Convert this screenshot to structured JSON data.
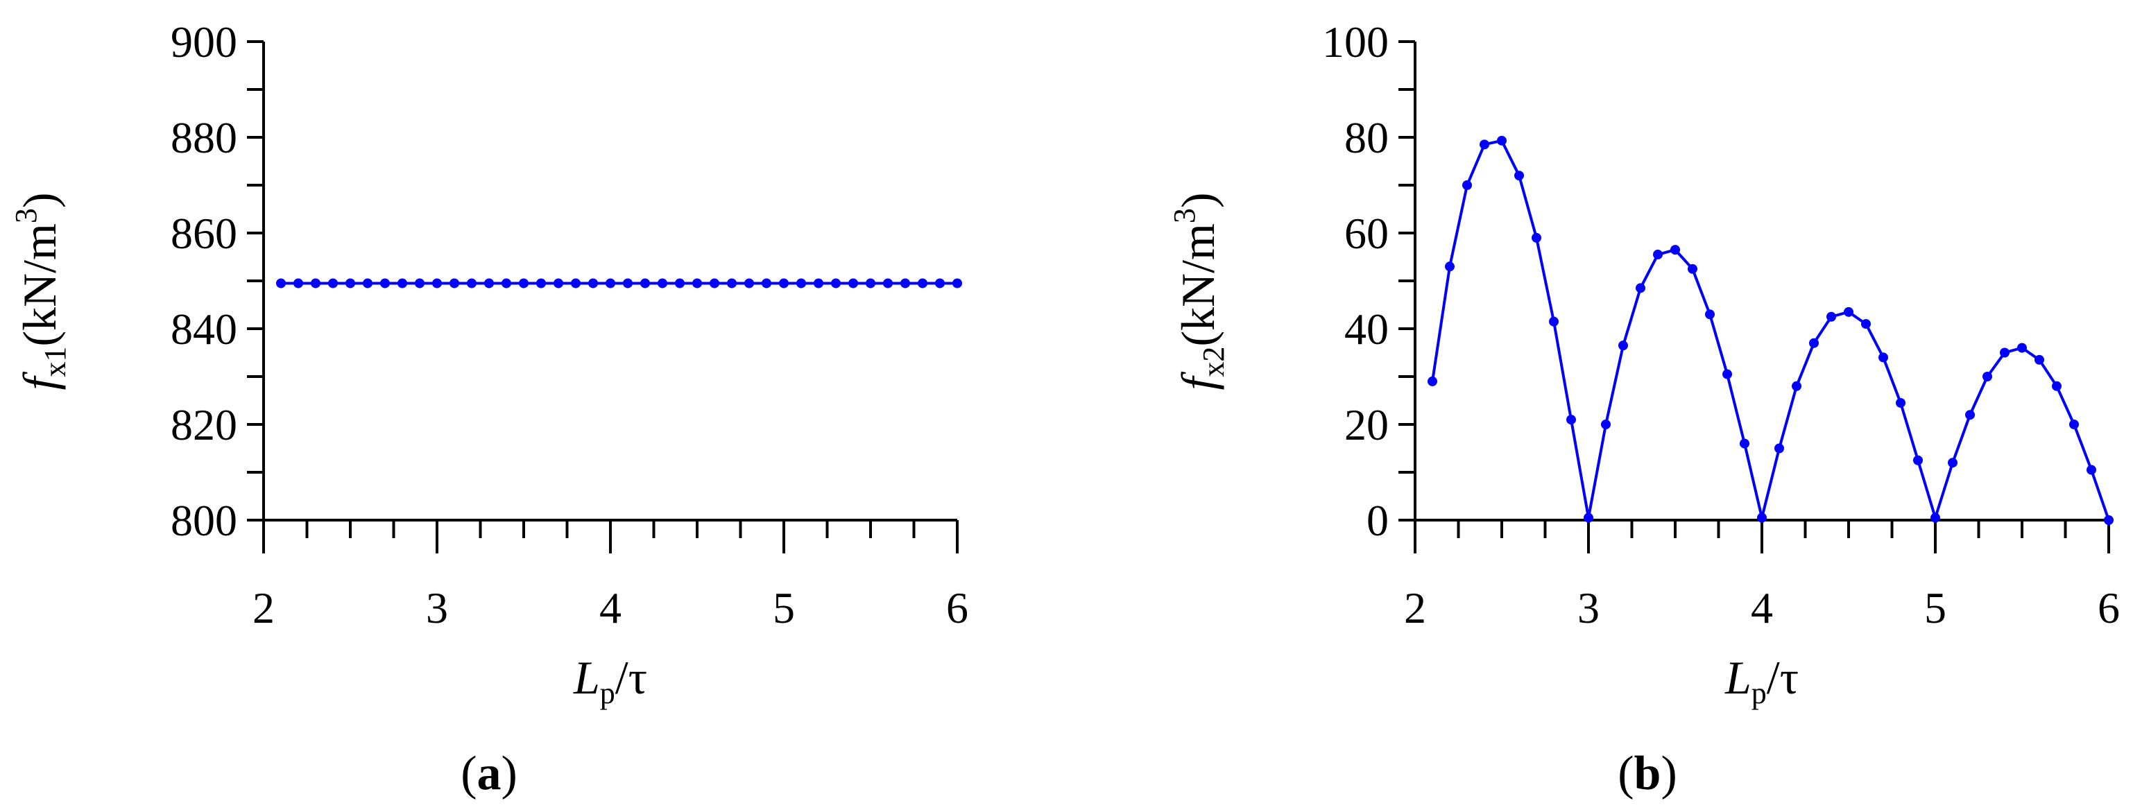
{
  "chart_data": [
    {
      "type": "line",
      "panel_label": "a",
      "x": [
        2.1,
        2.2,
        2.3,
        2.4,
        2.5,
        2.6,
        2.7,
        2.8,
        2.9,
        3.0,
        3.1,
        3.2,
        3.3,
        3.4,
        3.5,
        3.6,
        3.7,
        3.8,
        3.9,
        4.0,
        4.1,
        4.2,
        4.3,
        4.4,
        4.5,
        4.6,
        4.7,
        4.8,
        4.9,
        5.0,
        5.1,
        5.2,
        5.3,
        5.4,
        5.5,
        5.6,
        5.7,
        5.8,
        5.9,
        6.0
      ],
      "series": [
        {
          "values": [
            849.5,
            849.5,
            849.5,
            849.5,
            849.5,
            849.5,
            849.5,
            849.5,
            849.5,
            849.5,
            849.5,
            849.5,
            849.5,
            849.5,
            849.5,
            849.5,
            849.5,
            849.5,
            849.5,
            849.5,
            849.5,
            849.5,
            849.5,
            849.5,
            849.5,
            849.5,
            849.5,
            849.5,
            849.5,
            849.5,
            849.5,
            849.5,
            849.5,
            849.5,
            849.5,
            849.5,
            849.5,
            849.5,
            849.5,
            849.5
          ],
          "color": "#0000ff",
          "marker": "circle"
        }
      ],
      "xlim": [
        2,
        6
      ],
      "ylim": [
        800,
        900
      ],
      "xticks": [
        "2",
        "3",
        "4",
        "5",
        "6"
      ],
      "yticks": [
        "800",
        "820",
        "840",
        "860",
        "880",
        "900"
      ],
      "xlabel": {
        "main": "L",
        "sub": "p",
        "rest": "/τ"
      },
      "ylabel": {
        "main": "f",
        "sub": "x1",
        "rest": "(kN/m",
        "sup": "3",
        "close": ")"
      },
      "grid": false
    },
    {
      "type": "line",
      "panel_label": "b",
      "x": [
        2.1,
        2.2,
        2.3,
        2.4,
        2.5,
        2.6,
        2.7,
        2.8,
        2.9,
        3.0,
        3.1,
        3.2,
        3.3,
        3.4,
        3.5,
        3.6,
        3.7,
        3.8,
        3.9,
        4.0,
        4.1,
        4.2,
        4.3,
        4.4,
        4.5,
        4.6,
        4.7,
        4.8,
        4.9,
        5.0,
        5.1,
        5.2,
        5.3,
        5.4,
        5.5,
        5.6,
        5.7,
        5.8,
        5.9,
        6.0
      ],
      "series": [
        {
          "values": [
            29,
            53,
            70,
            78.5,
            79.3,
            72,
            59,
            41.5,
            21,
            0.5,
            20,
            36.5,
            48.5,
            55.5,
            56.5,
            52.5,
            43,
            30.5,
            16,
            0.5,
            15,
            28,
            37,
            42.5,
            43.5,
            41,
            34,
            24.5,
            12.5,
            0.5,
            12,
            22,
            30,
            35,
            36,
            33.5,
            28,
            20,
            10.5,
            0
          ],
          "color": "#0000ff",
          "marker": "circle"
        }
      ],
      "xlim": [
        2,
        6
      ],
      "ylim": [
        0,
        100
      ],
      "xticks": [
        "2",
        "3",
        "4",
        "5",
        "6"
      ],
      "yticks": [
        "0",
        "20",
        "40",
        "60",
        "80",
        "100"
      ],
      "xlabel": {
        "main": "L",
        "sub": "p",
        "rest": "/τ"
      },
      "ylabel": {
        "main": "f",
        "sub": "x2",
        "rest": "(kN/m",
        "sup": "3",
        "close": ")"
      },
      "grid": false
    }
  ],
  "panel_labels": [
    {
      "open": "(",
      "letter": "a",
      "close": ")"
    },
    {
      "open": "(",
      "letter": "b",
      "close": ")"
    }
  ]
}
